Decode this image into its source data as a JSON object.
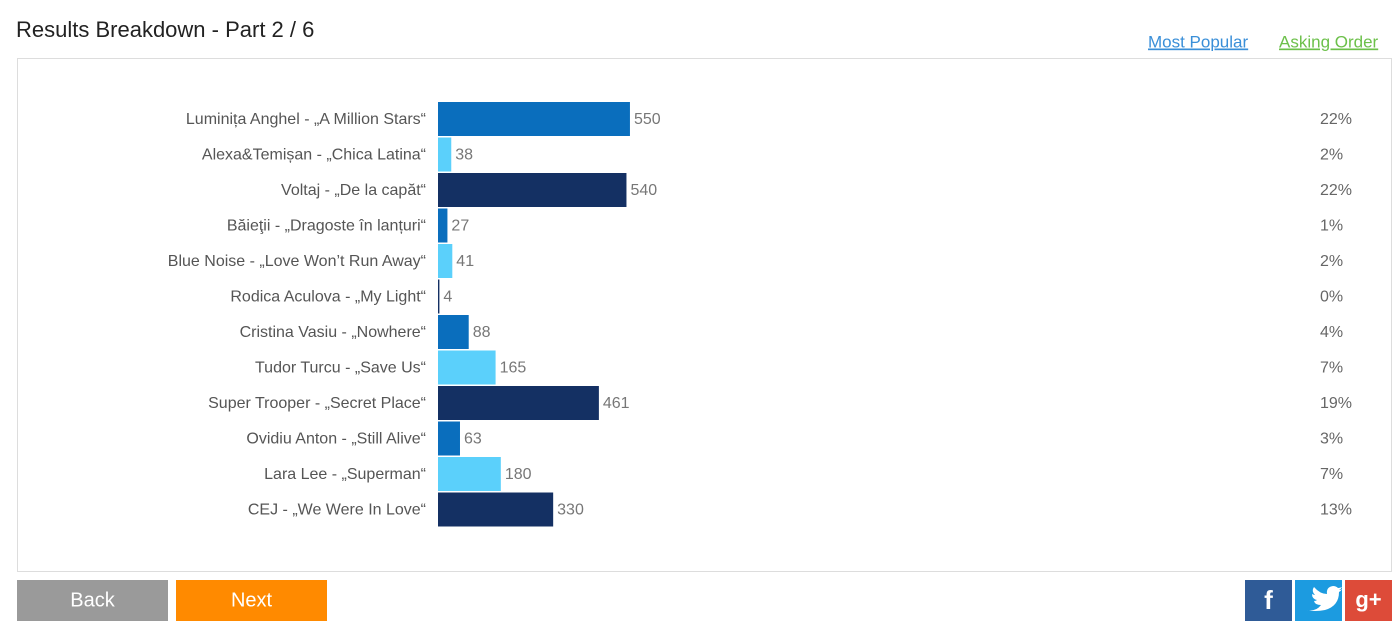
{
  "header": {
    "title": "Results Breakdown - Part 2 / 6",
    "links": [
      "Most Popular",
      "Asking Order"
    ]
  },
  "chart_data": {
    "type": "bar",
    "categories": [
      "Luminița Anghel - „A Million Stars“",
      "Alexa&Temișan - „Chica Latina“",
      "Voltaj - „De la capăt“",
      "Băieţii - „Dragoste în lanțuri“",
      "Blue Noise - „Love Won’t Run Away“",
      "Rodica Aculova - „My Light“",
      "Cristina Vasiu - „Nowhere“",
      "Tudor Turcu - „Save Us“",
      "Super Trooper - „Secret Place“",
      "Ovidiu Anton - „Still Alive“",
      "Lara Lee - „Superman“",
      "CEJ - „We Were In Love“"
    ],
    "values": [
      550,
      38,
      540,
      27,
      41,
      4,
      88,
      165,
      461,
      63,
      180,
      330
    ],
    "colors": [
      "#0a6ebd",
      "#5bd0fb",
      "#143063",
      "#0a6ebd",
      "#5bd0fb",
      "#143063",
      "#0a6ebd",
      "#5bd0fb",
      "#143063",
      "#0a6ebd",
      "#5bd0fb",
      "#143063"
    ],
    "percent_labels": [
      "22%",
      "2%",
      "22%",
      "1%",
      "2%",
      "0%",
      "4%",
      "7%",
      "19%",
      "3%",
      "7%",
      "13%"
    ]
  },
  "buttons": [
    "Back",
    "Next"
  ],
  "social": [
    "f",
    "g+"
  ]
}
